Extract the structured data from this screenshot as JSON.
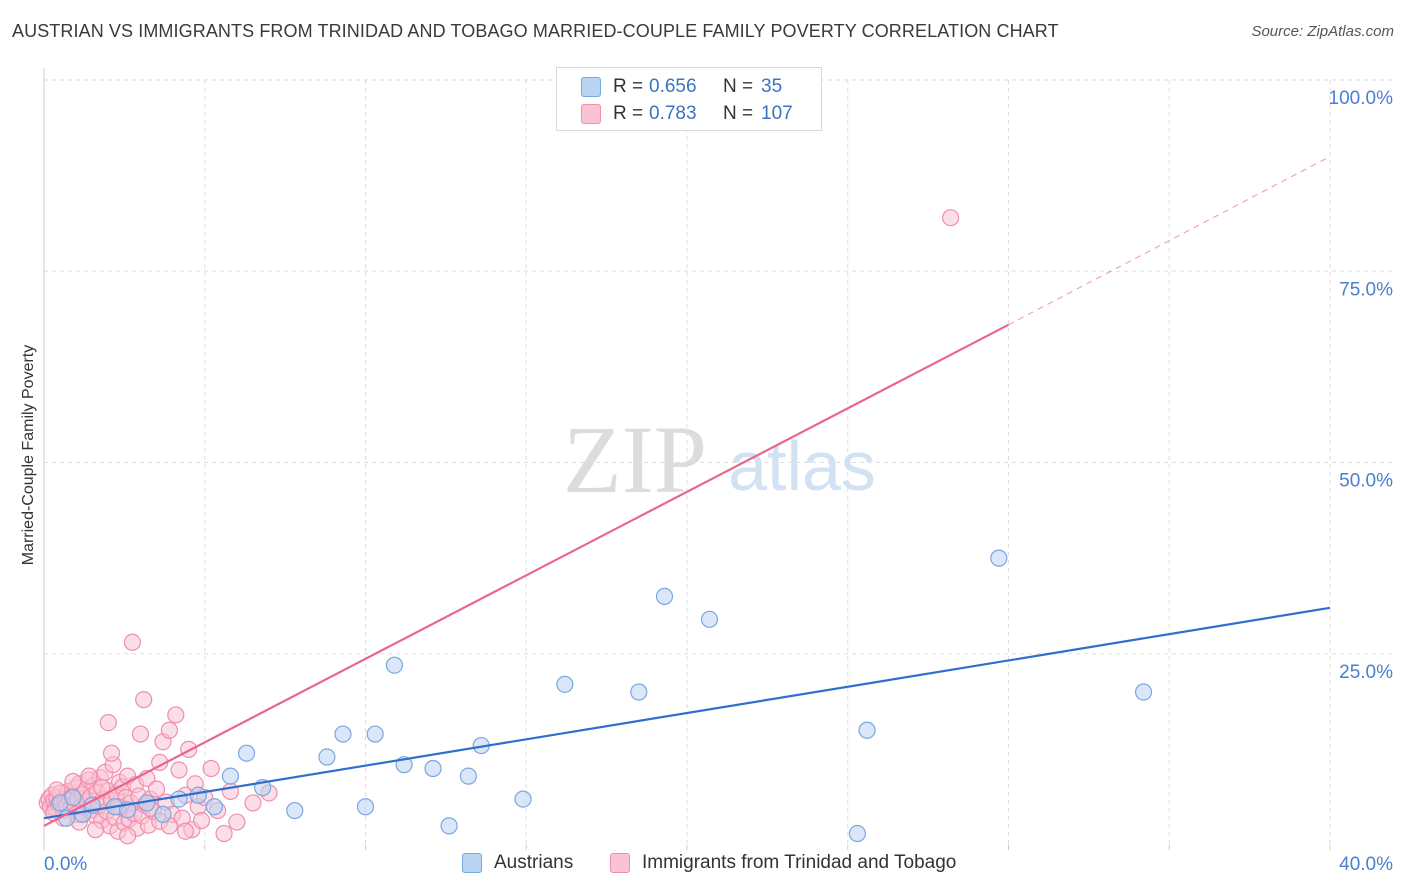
{
  "header": {
    "title": "AUSTRIAN VS IMMIGRANTS FROM TRINIDAD AND TOBAGO MARRIED-COUPLE FAMILY POVERTY CORRELATION CHART",
    "source": "Source: ZipAtlas.com"
  },
  "watermark": {
    "zip": "ZIP",
    "atlas": "atlas"
  },
  "legend": {
    "r_label": "R =",
    "n_label": "N =",
    "series": [
      {
        "name": "Austrians",
        "r": "0.656",
        "n": "35",
        "fill": "#b9d3f3",
        "stroke": "#7aa7e0"
      },
      {
        "name": "Immigrants from Trinidad and Tobago",
        "r": "0.783",
        "n": "107",
        "fill": "#f9c3d3",
        "stroke": "#ef8fad"
      }
    ]
  },
  "colors": {
    "blue_line": "#2f6fcc",
    "pink_line": "#e8678f",
    "tick_label": "#4a7fd0",
    "grid": "#dddddd"
  },
  "chart_data": {
    "type": "scatter",
    "title": "AUSTRIAN VS IMMIGRANTS FROM TRINIDAD AND TOBAGO MARRIED-COUPLE FAMILY POVERTY CORRELATION CHART",
    "xlabel": "",
    "ylabel": "Married-Couple Family Poverty",
    "xlim": [
      0,
      40
    ],
    "ylim": [
      0,
      100
    ],
    "x_tick_labels": [
      "0.0%",
      "40.0%"
    ],
    "y_ticks": [
      25,
      50,
      75,
      100
    ],
    "y_tick_labels": [
      "25.0%",
      "50.0%",
      "75.0%",
      "100.0%"
    ],
    "grid": true,
    "series": [
      {
        "name": "Austrians",
        "points": [
          [
            0.5,
            5.5
          ],
          [
            0.7,
            3.5
          ],
          [
            1.2,
            4.0
          ],
          [
            2.2,
            5.0
          ],
          [
            3.2,
            5.5
          ],
          [
            3.7,
            4.0
          ],
          [
            4.2,
            6.0
          ],
          [
            4.8,
            6.5
          ],
          [
            5.3,
            5.0
          ],
          [
            5.8,
            9.0
          ],
          [
            6.3,
            12.0
          ],
          [
            6.8,
            7.5
          ],
          [
            7.8,
            4.5
          ],
          [
            8.8,
            11.5
          ],
          [
            9.3,
            14.5
          ],
          [
            10.0,
            5.0
          ],
          [
            10.3,
            14.5
          ],
          [
            10.9,
            23.5
          ],
          [
            11.2,
            10.5
          ],
          [
            12.1,
            10.0
          ],
          [
            12.6,
            2.5
          ],
          [
            13.2,
            9.0
          ],
          [
            13.6,
            13.0
          ],
          [
            14.9,
            6.0
          ],
          [
            16.2,
            21.0
          ],
          [
            18.5,
            20.0
          ],
          [
            19.3,
            32.5
          ],
          [
            20.7,
            29.5
          ],
          [
            25.3,
            1.5
          ],
          [
            25.6,
            15.0
          ],
          [
            29.7,
            37.5
          ],
          [
            34.2,
            20.0
          ],
          [
            1.5,
            5.2
          ],
          [
            2.6,
            4.6
          ],
          [
            0.9,
            6.2
          ]
        ]
      },
      {
        "name": "Immigrants from Trinidad and Tobago",
        "points": [
          [
            0.1,
            5.5
          ],
          [
            0.15,
            6.0
          ],
          [
            0.2,
            5.0
          ],
          [
            0.25,
            6.5
          ],
          [
            0.3,
            5.8
          ],
          [
            0.35,
            4.8
          ],
          [
            0.4,
            6.2
          ],
          [
            0.45,
            5.3
          ],
          [
            0.5,
            6.8
          ],
          [
            0.55,
            5.6
          ],
          [
            0.6,
            4.5
          ],
          [
            0.65,
            6.0
          ],
          [
            0.7,
            5.2
          ],
          [
            0.75,
            7.0
          ],
          [
            0.8,
            5.9
          ],
          [
            0.85,
            4.9
          ],
          [
            0.9,
            6.4
          ],
          [
            0.95,
            5.4
          ],
          [
            1.0,
            7.5
          ],
          [
            1.05,
            6.1
          ],
          [
            1.1,
            8.0
          ],
          [
            1.15,
            5.0
          ],
          [
            1.2,
            6.6
          ],
          [
            1.25,
            4.2
          ],
          [
            1.3,
            7.2
          ],
          [
            1.35,
            5.7
          ],
          [
            1.4,
            8.5
          ],
          [
            1.45,
            6.3
          ],
          [
            1.5,
            4.6
          ],
          [
            1.55,
            7.8
          ],
          [
            1.6,
            3.8
          ],
          [
            1.65,
            6.9
          ],
          [
            1.7,
            5.1
          ],
          [
            1.75,
            8.8
          ],
          [
            1.8,
            3.2
          ],
          [
            1.85,
            6.0
          ],
          [
            1.9,
            9.5
          ],
          [
            1.95,
            4.4
          ],
          [
            2.0,
            7.1
          ],
          [
            2.05,
            2.5
          ],
          [
            2.1,
            5.8
          ],
          [
            2.15,
            10.5
          ],
          [
            2.2,
            3.6
          ],
          [
            2.25,
            6.7
          ],
          [
            2.3,
            1.8
          ],
          [
            2.35,
            8.2
          ],
          [
            2.4,
            4.9
          ],
          [
            2.45,
            7.6
          ],
          [
            2.5,
            2.9
          ],
          [
            2.55,
            6.2
          ],
          [
            2.6,
            9.0
          ],
          [
            2.65,
            3.4
          ],
          [
            2.7,
            5.5
          ],
          [
            2.75,
            26.5
          ],
          [
            2.8,
            4.1
          ],
          [
            2.85,
            7.9
          ],
          [
            2.9,
            2.2
          ],
          [
            2.95,
            6.4
          ],
          [
            3.0,
            14.5
          ],
          [
            3.05,
            3.8
          ],
          [
            3.1,
            19.0
          ],
          [
            3.15,
            5.2
          ],
          [
            3.2,
            8.7
          ],
          [
            3.25,
            2.6
          ],
          [
            3.3,
            6.0
          ],
          [
            3.4,
            4.4
          ],
          [
            3.5,
            7.3
          ],
          [
            3.6,
            3.1
          ],
          [
            3.7,
            13.5
          ],
          [
            3.8,
            5.6
          ],
          [
            3.9,
            15.0
          ],
          [
            4.0,
            4.0
          ],
          [
            4.1,
            17.0
          ],
          [
            4.2,
            9.8
          ],
          [
            4.3,
            3.5
          ],
          [
            4.4,
            6.5
          ],
          [
            4.5,
            12.5
          ],
          [
            4.6,
            2.0
          ],
          [
            4.7,
            8.0
          ],
          [
            4.8,
            5.0
          ],
          [
            4.9,
            3.2
          ],
          [
            5.0,
            6.2
          ],
          [
            5.2,
            10.0
          ],
          [
            5.4,
            4.5
          ],
          [
            5.6,
            1.5
          ],
          [
            5.8,
            7.0
          ],
          [
            6.0,
            3.0
          ],
          [
            6.5,
            5.5
          ],
          [
            7.0,
            6.8
          ],
          [
            2.0,
            16.0
          ],
          [
            1.0,
            4.0
          ],
          [
            0.6,
            3.5
          ],
          [
            1.8,
            7.5
          ],
          [
            2.3,
            5.0
          ],
          [
            28.2,
            82.0
          ],
          [
            0.3,
            4.2
          ],
          [
            1.1,
            3.0
          ],
          [
            1.6,
            2.0
          ],
          [
            2.6,
            1.2
          ],
          [
            3.3,
            4.8
          ],
          [
            3.9,
            2.5
          ],
          [
            4.4,
            1.8
          ],
          [
            0.4,
            7.2
          ],
          [
            0.9,
            8.3
          ],
          [
            1.4,
            9.0
          ],
          [
            2.1,
            12.0
          ],
          [
            3.6,
            10.8
          ]
        ]
      }
    ],
    "trend_lines": [
      {
        "name": "Austrians",
        "from": [
          0,
          3.5
        ],
        "to": [
          40,
          31
        ],
        "style": "solid"
      },
      {
        "name": "Immigrants from Trinidad and Tobago",
        "from": [
          0,
          2.5
        ],
        "to": [
          30,
          68
        ],
        "style": "solid"
      },
      {
        "name": "Immigrants from Trinidad and Tobago",
        "from": [
          30,
          68
        ],
        "to": [
          40,
          90
        ],
        "style": "dashed"
      }
    ]
  }
}
